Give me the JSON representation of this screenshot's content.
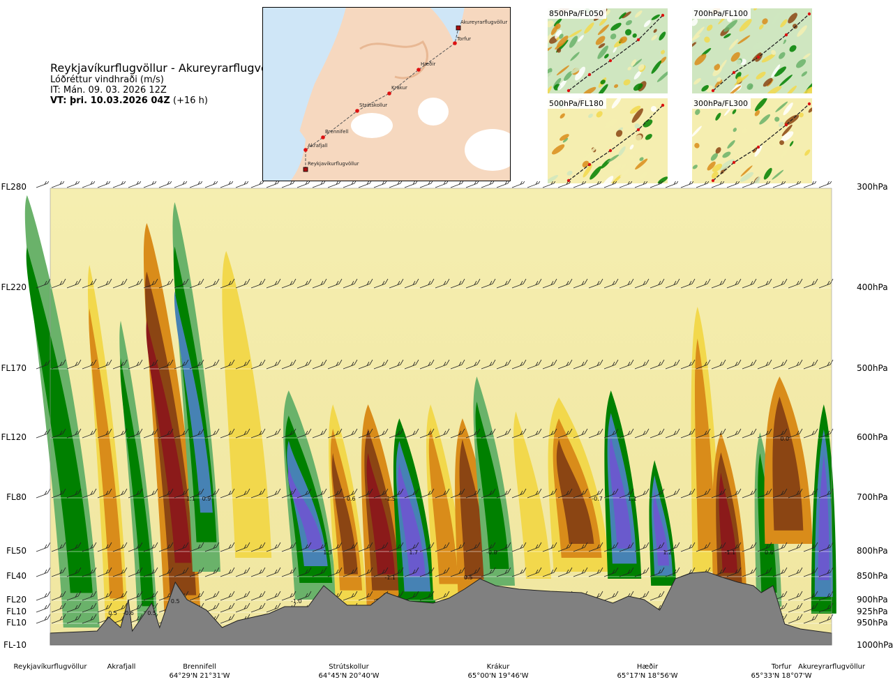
{
  "header": {
    "title": "Reykjavíkurflugvöllur - Akureyrarflugvöllur",
    "subtitle": "Lóðréttur vindhraði (m/s)",
    "issue_time": "IT: Mán. 09. 03. 2026 12Z",
    "valid_time_label": "VT: þri. 10.03.2026 04Z",
    "valid_time_offset": "(+16 h)"
  },
  "route_map": {
    "waypoints": [
      {
        "name": "Akureyrarflugvöllur",
        "type": "airport"
      },
      {
        "name": "Torfur",
        "type": "waypoint"
      },
      {
        "name": "Hæðir",
        "type": "waypoint"
      },
      {
        "name": "Krákur",
        "type": "waypoint"
      },
      {
        "name": "Strútskollur",
        "type": "waypoint"
      },
      {
        "name": "Brennifell",
        "type": "waypoint"
      },
      {
        "name": "Akrafjall",
        "type": "waypoint"
      },
      {
        "name": "Reykjavíkurflugvöllur",
        "type": "airport"
      }
    ]
  },
  "insets": [
    {
      "label": "850hPa/FL050"
    },
    {
      "label": "700hPa/FL100"
    },
    {
      "label": "500hPa/FL180"
    },
    {
      "label": "300hPa/FL300"
    }
  ],
  "colors": {
    "upward_strong": "#6a5acd",
    "upward_mid": "#4682b4",
    "upward": "#008000",
    "upward_weak": "#6ab26a",
    "near_zero": "#f5eeb0",
    "downward_weak": "#f2d84c",
    "downward": "#d98c1a",
    "downward_mid": "#8b4513",
    "downward_strong": "#8b1a1a",
    "terrain": "#808080",
    "route": "#000000",
    "waypoint": "#dd1111"
  },
  "chart_data": {
    "type": "heatmap",
    "title": "Lóðréttur vindhraði (m/s)",
    "left_axis_ticks": [
      "FL280",
      "FL220",
      "FL170",
      "FL120",
      "FL80",
      "FL50",
      "FL40",
      "FL20",
      "FL10",
      "FL10",
      "FL-10"
    ],
    "right_axis_ticks": [
      "300hPa",
      "400hPa",
      "500hPa",
      "600hPa",
      "700hPa",
      "800hPa",
      "850hPa",
      "900hPa",
      "925hPa",
      "950hPa",
      "1000hPa"
    ],
    "pressure_levels_hpa": [
      300,
      400,
      500,
      600,
      700,
      800,
      850,
      900,
      925,
      950,
      1000
    ],
    "locations": [
      {
        "name": "Reykjavíkurflugvöllur",
        "coords": ""
      },
      {
        "name": "Akrafjall",
        "coords": ""
      },
      {
        "name": "Brennifell",
        "coords": "64°29'N 21°31'W"
      },
      {
        "name": "Strútskollur",
        "coords": "64°45'N 20°40'W"
      },
      {
        "name": "Krákur",
        "coords": "65°00'N 19°46'W"
      },
      {
        "name": "Hæðir",
        "coords": "65°17'N 18°56'W"
      },
      {
        "name": "Torfur",
        "coords": "65°33'N 18°07'W"
      },
      {
        "name": "Akureyrarflugvöllur",
        "coords": ""
      }
    ],
    "value_labels": [
      {
        "text": "1.1",
        "along_route": 0.18,
        "pressure_hpa": 700
      },
      {
        "text": "0.9",
        "along_route": 0.2,
        "pressure_hpa": 700
      },
      {
        "text": "0.6",
        "along_route": 0.385,
        "pressure_hpa": 700
      },
      {
        "text": "-1.5",
        "along_route": 0.435,
        "pressure_hpa": 700
      },
      {
        "text": "-0.7",
        "along_route": 0.7,
        "pressure_hpa": 700
      },
      {
        "text": "1.1",
        "along_route": 0.745,
        "pressure_hpa": 700
      },
      {
        "text": "0.0",
        "along_route": 0.94,
        "pressure_hpa": 600
      },
      {
        "text": "1.3",
        "along_route": 0.355,
        "pressure_hpa": 800
      },
      {
        "text": "1.7",
        "along_route": 0.465,
        "pressure_hpa": 800
      },
      {
        "text": "-0.8",
        "along_route": 0.565,
        "pressure_hpa": 800
      },
      {
        "text": "1.2",
        "along_route": 0.79,
        "pressure_hpa": 800
      },
      {
        "text": "-1.1",
        "along_route": 0.87,
        "pressure_hpa": 800
      },
      {
        "text": "0.6",
        "along_route": 0.92,
        "pressure_hpa": 800
      },
      {
        "text": "-1.1",
        "along_route": 0.435,
        "pressure_hpa": 850
      },
      {
        "text": "0.5",
        "along_route": 0.535,
        "pressure_hpa": 850
      },
      {
        "text": "0.5",
        "along_route": 0.16,
        "pressure_hpa": 900
      },
      {
        "text": "-1.0",
        "along_route": 0.315,
        "pressure_hpa": 900
      },
      {
        "text": "0.5",
        "along_route": 0.08,
        "pressure_hpa": 925
      },
      {
        "text": "-0.6",
        "along_route": 0.1,
        "pressure_hpa": 925
      },
      {
        "text": "0.5",
        "along_route": 0.13,
        "pressure_hpa": 925
      }
    ]
  }
}
